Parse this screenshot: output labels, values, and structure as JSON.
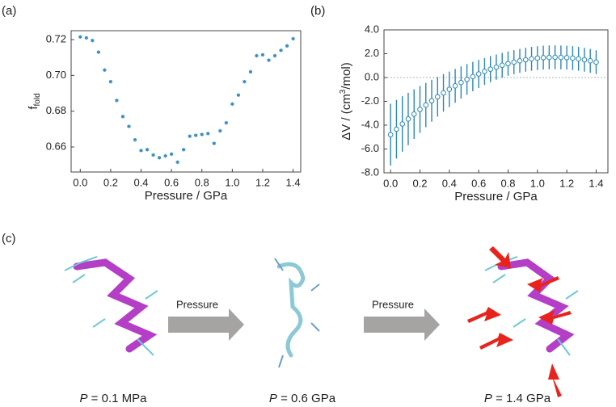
{
  "chart_data": [
    {
      "type": "scatter",
      "panel_label": "(a)",
      "xlabel": "Pressure / GPa",
      "ylabel": {
        "main": "f",
        "sub": "fold"
      },
      "color": "#3b8fc4",
      "marker": "filled",
      "x": [
        0,
        0.04,
        0.08,
        0.12,
        0.16,
        0.2,
        0.24,
        0.28,
        0.32,
        0.36,
        0.4,
        0.44,
        0.48,
        0.52,
        0.56,
        0.6,
        0.64,
        0.68,
        0.72,
        0.76,
        0.8,
        0.84,
        0.88,
        0.92,
        0.96,
        1,
        1.04,
        1.08,
        1.12,
        1.16,
        1.2,
        1.24,
        1.28,
        1.32,
        1.36,
        1.4
      ],
      "values": [
        0.7215,
        0.721,
        0.7195,
        0.713,
        0.703,
        0.6965,
        0.686,
        0.677,
        0.6715,
        0.664,
        0.658,
        0.6585,
        0.6555,
        0.654,
        0.655,
        0.656,
        0.6515,
        0.6585,
        0.666,
        0.6665,
        0.667,
        0.6675,
        0.662,
        0.669,
        0.6735,
        0.684,
        0.689,
        0.6965,
        0.702,
        0.711,
        0.7115,
        0.7085,
        0.711,
        0.714,
        0.7165,
        0.7205
      ],
      "errors": [
        0.001,
        0.001,
        0.001,
        0.001,
        0.001,
        0.001,
        0.001,
        0.001,
        0.001,
        0.001,
        0.001,
        0.001,
        0.001,
        0.001,
        0.001,
        0.001,
        0.001,
        0.001,
        0.001,
        0.001,
        0.001,
        0.001,
        0.001,
        0.001,
        0.001,
        0.001,
        0.001,
        0.001,
        0.001,
        0.001,
        0.001,
        0.001,
        0.001,
        0.001,
        0.001,
        0.001
      ],
      "xlim": [
        -0.06,
        1.45
      ],
      "ylim": [
        0.646,
        0.725
      ],
      "xticks": [
        {
          "value": 0,
          "label": "0.0"
        },
        0.2,
        0.4,
        0.6,
        0.8,
        {
          "value": 1,
          "label": "1.0"
        },
        1.2,
        1.4
      ],
      "yticks": [
        0.66,
        0.68,
        {
          "value": 0.7,
          "label": "0.70"
        },
        0.72
      ]
    },
    {
      "type": "scatter",
      "panel_label": "(b)",
      "xlabel": "Pressure / GPa",
      "ylabel": {
        "main": "ΔV / (cm",
        "sup": "3",
        "rest": "/mol)"
      },
      "color": "#2a86b8",
      "marker": "open",
      "hline": 0,
      "x": [
        0,
        0.04,
        0.08,
        0.12,
        0.16,
        0.2,
        0.24,
        0.28,
        0.32,
        0.36,
        0.4,
        0.44,
        0.48,
        0.52,
        0.56,
        0.6,
        0.64,
        0.68,
        0.72,
        0.76,
        0.8,
        0.84,
        0.88,
        0.92,
        0.96,
        1,
        1.04,
        1.08,
        1.12,
        1.16,
        1.2,
        1.24,
        1.28,
        1.32,
        1.36,
        1.4
      ],
      "values": [
        -4.8,
        -4.34,
        -3.9,
        -3.48,
        -3.07,
        -2.68,
        -2.31,
        -1.95,
        -1.62,
        -1.29,
        -0.99,
        -0.7,
        -0.42,
        -0.16,
        0.08,
        0.3,
        0.51,
        0.7,
        0.87,
        1.03,
        1.17,
        1.29,
        1.4,
        1.49,
        1.57,
        1.63,
        1.67,
        1.69,
        1.7,
        1.69,
        1.67,
        1.63,
        1.57,
        1.49,
        1.4,
        1.29
      ],
      "errors": [
        2.6,
        2.46,
        2.33,
        2.2,
        2.08,
        1.97,
        1.86,
        1.76,
        1.66,
        1.58,
        1.49,
        1.42,
        1.35,
        1.29,
        1.23,
        1.18,
        1.13,
        1.1,
        1.06,
        1.04,
        1.02,
        1.01,
        1,
        1,
        1,
        1,
        1,
        1,
        1,
        1,
        1,
        1,
        1,
        1,
        1,
        1
      ],
      "xlim": [
        -0.045,
        1.48
      ],
      "ylim": [
        -8,
        4
      ],
      "xticks": [
        {
          "value": 0,
          "label": "0.0"
        },
        0.2,
        0.4,
        0.6,
        0.8,
        {
          "value": 1,
          "label": "1.0"
        },
        1.2,
        1.4
      ],
      "yticks": [
        {
          "value": -8,
          "label": "-8.0"
        },
        {
          "value": -6,
          "label": "-6.0"
        },
        {
          "value": -4,
          "label": "-4.0"
        },
        {
          "value": -2,
          "label": "-2.0"
        },
        {
          "value": 0,
          "label": "0.0"
        },
        {
          "value": 2,
          "label": "2.0"
        },
        {
          "value": 4,
          "label": "4.0"
        }
      ]
    }
  ],
  "figure_c": {
    "panel_label": "(c)",
    "arrows": [
      "Pressure",
      "Pressure"
    ],
    "captions": [
      {
        "var": "P",
        "text": " = 0.1 MPa"
      },
      {
        "var": "P",
        "text": " = 0.6 GPa"
      },
      {
        "var": "P",
        "text": " = 1.4 GPa"
      }
    ]
  }
}
